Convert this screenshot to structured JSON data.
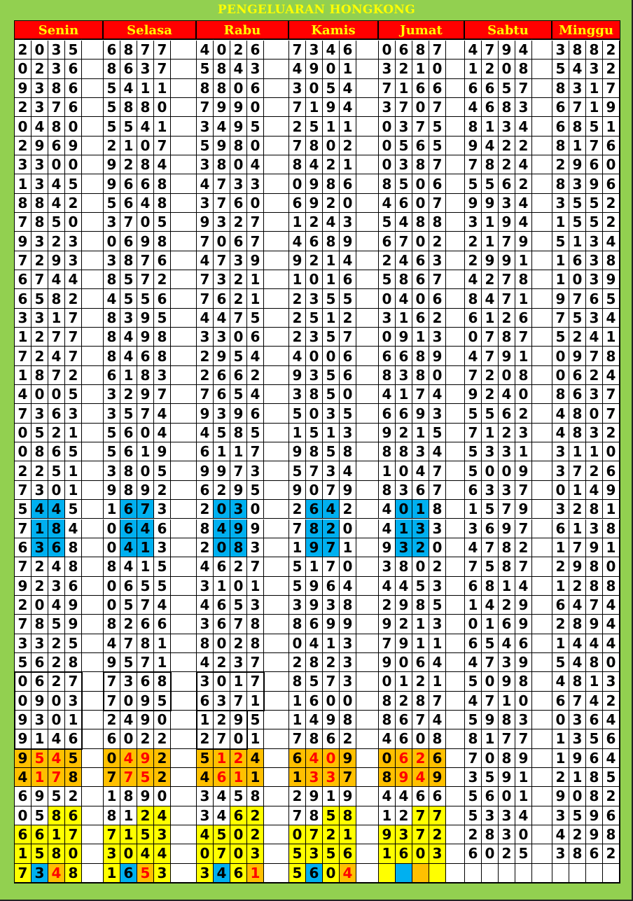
{
  "title": "PENGELUARAN HONGKONG",
  "colors": {
    "background": "#92d050",
    "header_bg": "#ff0000",
    "header_text": "#ffff00",
    "blue": "#00b0f0",
    "orange": "#ffc000",
    "yellow": "#ffff00",
    "red_text": "#ff0000"
  },
  "days": [
    "Senin",
    "Selasa",
    "Rabu",
    "Kamis",
    "Jumat",
    "Sabtu",
    "Minggu"
  ],
  "rows": [
    [
      "2035",
      "6877",
      "4026",
      "7346",
      "0687",
      "4794",
      "3882"
    ],
    [
      "0236",
      "8637",
      "5843",
      "4901",
      "3210",
      "1208",
      "5432"
    ],
    [
      "9386",
      "5411",
      "8806",
      "3054",
      "7166",
      "6657",
      "8317"
    ],
    [
      "2376",
      "5880",
      "7990",
      "7194",
      "3707",
      "4683",
      "6719"
    ],
    [
      "0480",
      "5541",
      "3495",
      "2511",
      "0375",
      "8134",
      "6851"
    ],
    [
      "2969",
      "2107",
      "5980",
      "7802",
      "0565",
      "9422",
      "8176"
    ],
    [
      "3300",
      "9284",
      "3804",
      "8421",
      "0387",
      "7824",
      "2960"
    ],
    [
      "1345",
      "9668",
      "4733",
      "0986",
      "8506",
      "5562",
      "8396"
    ],
    [
      "8842",
      "5648",
      "3760",
      "6920",
      "4607",
      "9934",
      "3552"
    ],
    [
      "7850",
      "3705",
      "9327",
      "1243",
      "5488",
      "3194",
      "1552"
    ],
    [
      "9323",
      "0698",
      "7067",
      "4689",
      "6702",
      "2179",
      "5134"
    ],
    [
      "7293",
      "3876",
      "4739",
      "9214",
      "2463",
      "2991",
      "1638"
    ],
    [
      "6744",
      "8572",
      "7321",
      "1016",
      "5867",
      "4278",
      "1039"
    ],
    [
      "6582",
      "4556",
      "7621",
      "2355",
      "0406",
      "8471",
      "9765"
    ],
    [
      "3317",
      "8395",
      "4475",
      "2512",
      "3162",
      "6126",
      "7534"
    ],
    [
      "1277",
      "8498",
      "3306",
      "2357",
      "0913",
      "0787",
      "5241"
    ],
    [
      "7247",
      "8468",
      "2954",
      "4006",
      "6689",
      "4791",
      "0978"
    ],
    [
      "1872",
      "6183",
      "2662",
      "9356",
      "8380",
      "7208",
      "0624"
    ],
    [
      "4005",
      "3297",
      "7654",
      "3850",
      "4174",
      "9240",
      "8637"
    ],
    [
      "7363",
      "3574",
      "9396",
      "5035",
      "6693",
      "5562",
      "4807"
    ],
    [
      "0521",
      "5604",
      "4585",
      "1513",
      "9215",
      "7123",
      "4832"
    ],
    [
      "0865",
      "5619",
      "6117",
      "9858",
      "8834",
      "5331",
      "3110"
    ],
    [
      "2251",
      "3805",
      "9973",
      "5734",
      "1047",
      "5009",
      "3726"
    ],
    [
      "7301",
      "9892",
      "6295",
      "9079",
      "8367",
      "6337",
      "0149"
    ],
    [
      "5445",
      "1673",
      "2030",
      "2642",
      "4018",
      "1579",
      "3281"
    ],
    [
      "7184",
      "0646",
      "8499",
      "7820",
      "4133",
      "3697",
      "6138"
    ],
    [
      "6368",
      "0413",
      "2083",
      "1971",
      "9320",
      "4782",
      "1791"
    ],
    [
      "7248",
      "8415",
      "4627",
      "5170",
      "3802",
      "7587",
      "2980"
    ],
    [
      "9236",
      "0655",
      "3101",
      "5964",
      "4453",
      "6814",
      "1288"
    ],
    [
      "2049",
      "0574",
      "4653",
      "3938",
      "2985",
      "1429",
      "6474"
    ],
    [
      "7859",
      "8266",
      "3678",
      "8699",
      "9213",
      "0169",
      "2894"
    ],
    [
      "3325",
      "4781",
      "8028",
      "0413",
      "7911",
      "6546",
      "1444"
    ],
    [
      "5628",
      "9571",
      "4237",
      "2823",
      "9064",
      "4739",
      "5480"
    ],
    [
      "0627",
      "7368",
      "3017",
      "8573",
      "0121",
      "5098",
      "4813"
    ],
    [
      "0903",
      "7095",
      "6371",
      "1600",
      "8287",
      "4710",
      "6742"
    ],
    [
      "9301",
      "2490",
      "1295",
      "1498",
      "8674",
      "5983",
      "0364"
    ],
    [
      "9146",
      "6022",
      "2701",
      "7862",
      "4608",
      "8177",
      "1356"
    ],
    [
      "9545",
      "0492",
      "5124",
      "6409",
      "0626",
      "7089",
      "1964"
    ],
    [
      "4178",
      "7752",
      "4611",
      "1337",
      "8949",
      "3591",
      "2185"
    ],
    [
      "6952",
      "1890",
      "3458",
      "2919",
      "4466",
      "5601",
      "9082"
    ],
    [
      "0586",
      "8124",
      "3462",
      "7858",
      "1277",
      "5334",
      "3596"
    ],
    [
      "6617",
      "7153",
      "4502",
      "0721",
      "9372",
      "2830",
      "4298"
    ],
    [
      "1580",
      "3044",
      "0703",
      "5356",
      "1603",
      "6025",
      "3862"
    ],
    [
      "7348",
      "1653",
      "3461",
      "5604",
      "",
      "",
      ""
    ]
  ],
  "highlights": {
    "24": [
      ".BB.",
      ".BB.",
      ".BB.",
      ".BB.",
      ".BB."
    ],
    "25": [
      ".BB.",
      ".BB.",
      ".BB.",
      ".BB.",
      ".BB."
    ],
    "26": [
      ".BB.",
      ".BB.",
      ".BB.",
      ".BB.",
      ".BB."
    ],
    "37": [
      "ORRO",
      "ORRO",
      "ORRO",
      "ORRO",
      "ORRO"
    ],
    "38": [
      "ORRO",
      "ORRO",
      "ORRO",
      "ORRO",
      "ORRO"
    ],
    "40": [
      "..YY",
      "..YY",
      "..YY",
      "..YY",
      "..YY"
    ],
    "41": [
      "YYYY",
      "YYYY",
      "YYYY",
      "YYYY",
      "YYYY"
    ],
    "42": [
      "YYYY",
      "YYYY",
      "YYYY",
      "YYYY",
      "YYYY"
    ],
    "43": [
      "YBRY",
      "YBRY",
      "YBYR",
      "YBYR",
      "YBOY"
    ]
  }
}
